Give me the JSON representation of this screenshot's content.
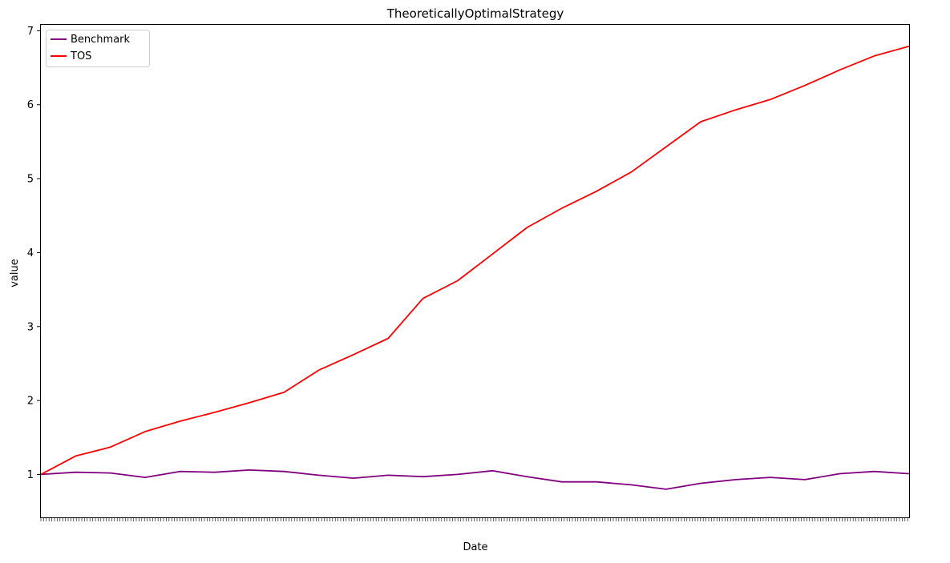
{
  "chart_data": {
    "type": "line",
    "title": "TheoreticallyOptimalStrategy",
    "xlabel": "Date",
    "ylabel": "value",
    "ylim": [
      0.42,
      7.08
    ],
    "yticks": [
      1,
      2,
      3,
      4,
      5,
      6,
      7
    ],
    "grid": false,
    "legend_position": "upper-left",
    "x_tick_labels_note": "dense, overlapping date tick labels (unreadable)",
    "x_index": [
      0,
      4,
      8,
      12,
      16,
      20,
      24,
      28,
      32,
      36,
      40,
      44,
      48,
      52,
      56,
      60,
      64,
      68,
      72,
      76,
      80,
      84,
      88,
      92,
      96,
      100
    ],
    "series": [
      {
        "name": "Benchmark",
        "color": "#800080",
        "values": [
          1.0,
          1.03,
          1.02,
          0.96,
          1.04,
          1.03,
          1.06,
          1.04,
          0.99,
          0.95,
          0.99,
          0.97,
          1.0,
          1.05,
          0.97,
          0.9,
          0.9,
          0.86,
          0.8,
          0.88,
          0.93,
          0.96,
          0.93,
          1.01,
          1.04,
          1.01
        ]
      },
      {
        "name": "TOS",
        "color": "#ff0000",
        "values": [
          1.0,
          1.25,
          1.37,
          1.58,
          1.72,
          1.84,
          1.97,
          2.11,
          2.41,
          2.62,
          2.84,
          3.38,
          3.62,
          3.98,
          4.34,
          4.6,
          4.83,
          5.09,
          5.43,
          5.77,
          5.93,
          6.07,
          6.26,
          6.47,
          6.66,
          6.79
        ]
      }
    ]
  }
}
